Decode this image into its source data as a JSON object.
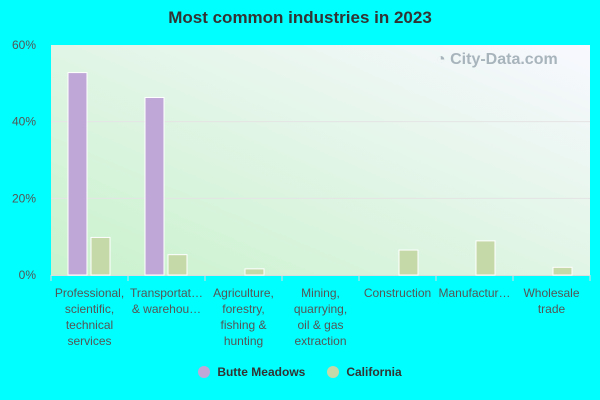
{
  "chart_data": {
    "type": "bar",
    "title": "Most common industries in 2023",
    "categories": [
      [
        "Professional,",
        "scientific,",
        "technical",
        "services"
      ],
      [
        "Transportat…",
        "& warehou…"
      ],
      [
        "Agriculture,",
        "forestry,",
        "fishing &",
        "hunting"
      ],
      [
        "Mining,",
        "quarrying,",
        "oil & gas",
        "extraction"
      ],
      [
        "Construction"
      ],
      [
        "Manufactur…"
      ],
      [
        "Wholesale",
        "trade"
      ]
    ],
    "series": [
      {
        "name": "Butte Meadows",
        "color": "#bfa8d8",
        "values": [
          52.8,
          46.3,
          null,
          null,
          null,
          null,
          null
        ]
      },
      {
        "name": "California",
        "color": "#c5d8a8",
        "values": [
          9.8,
          5.3,
          1.6,
          null,
          6.5,
          8.9,
          2.0
        ]
      }
    ],
    "ylim": [
      0,
      60
    ],
    "yticks": [
      0,
      20,
      40,
      60
    ],
    "ytick_labels": [
      "0%",
      "20%",
      "40%",
      "60%"
    ],
    "grid": true,
    "legend": "bottom",
    "watermark": "City-Data.com"
  }
}
